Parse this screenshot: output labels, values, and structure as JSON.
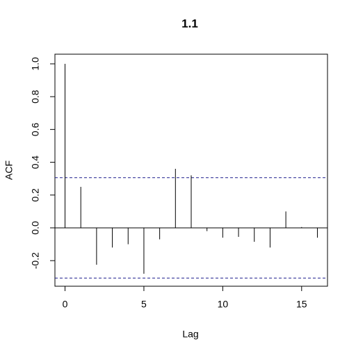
{
  "chart_data": {
    "type": "acf",
    "title": "1.1",
    "x_label": "Lag",
    "y_label": "ACF",
    "x": [
      0,
      1,
      2,
      3,
      4,
      5,
      6,
      7,
      8,
      9,
      10,
      11,
      12,
      13,
      14,
      15,
      16
    ],
    "values": [
      1.0,
      0.25,
      -0.225,
      -0.12,
      -0.1,
      -0.28,
      -0.07,
      0.36,
      0.32,
      -0.02,
      -0.06,
      -0.055,
      -0.085,
      -0.12,
      0.1,
      0.005,
      -0.06
    ],
    "color": "#000000",
    "conf_limits": [
      0.306,
      -0.306
    ],
    "conf_color": "#1a1a8c",
    "xlim": [
      -0.64,
      16.64
    ],
    "ylim": [
      -0.356,
      1.059
    ],
    "xticks": [
      0,
      5,
      10,
      15
    ],
    "yticks": [
      {
        "value": -0.2,
        "label": "-0.2"
      },
      {
        "value": 0,
        "label": "0.0"
      },
      {
        "value": 0.2,
        "label": "0.2"
      },
      {
        "value": 0.4,
        "label": "0.4"
      },
      {
        "value": 0.6,
        "label": "0.6"
      },
      {
        "value": 0.8,
        "label": "0.8"
      },
      {
        "value": 1,
        "label": "1.0"
      }
    ]
  }
}
